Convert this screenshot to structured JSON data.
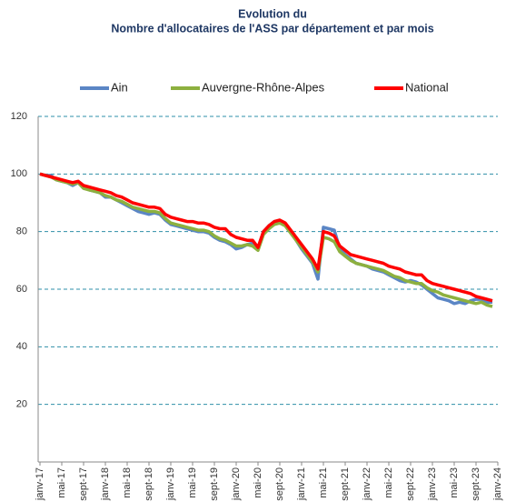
{
  "chart_data": {
    "type": "line",
    "title": "Evolution du",
    "subtitle": "Nombre d'allocataires de l'ASS par département et par mois",
    "categories": [
      "janv-17",
      null,
      null,
      null,
      "mai-17",
      null,
      null,
      null,
      "sept-17",
      null,
      null,
      null,
      "janv-18",
      null,
      null,
      null,
      "mai-18",
      null,
      null,
      null,
      "sept-18",
      null,
      null,
      null,
      "janv-19",
      null,
      null,
      null,
      "mai-19",
      null,
      null,
      null,
      "sept-19",
      null,
      null,
      null,
      "janv-20",
      null,
      null,
      null,
      "mai-20",
      null,
      null,
      null,
      "sept-20",
      null,
      null,
      null,
      "janv-21",
      null,
      null,
      null,
      "mai-21",
      null,
      null,
      null,
      "sept-21",
      null,
      null,
      null,
      "janv-22",
      null,
      null,
      null,
      "mai-22",
      null,
      null,
      null,
      "sept-22",
      null,
      null,
      null,
      "janv-23",
      null,
      null,
      null,
      "mai-23",
      null,
      null,
      null,
      "sept-23",
      null,
      null,
      null,
      "janv-24"
    ],
    "series": [
      {
        "name": "Ain",
        "color": "#5b86c5",
        "values": [
          100,
          99.5,
          99.5,
          98,
          97.5,
          97,
          96,
          97,
          95.5,
          94.5,
          94,
          93.5,
          92,
          92,
          91,
          90,
          89,
          88,
          87,
          86.5,
          86,
          86.5,
          86,
          84,
          82.5,
          82,
          81.5,
          81,
          80.5,
          80,
          80,
          79.5,
          78,
          77,
          76.5,
          75.5,
          74,
          74.5,
          75.5,
          76,
          74,
          80,
          82,
          83.5,
          83.5,
          82.5,
          80,
          77,
          74,
          71.5,
          69,
          63.5,
          81.5,
          81,
          80.5,
          74,
          72,
          70.5,
          69,
          68.5,
          68,
          67,
          66.5,
          66,
          65,
          64,
          63,
          62.5,
          63,
          62.5,
          61.5,
          60,
          58.5,
          57,
          56.5,
          56,
          55,
          55.5,
          55,
          56,
          56.5,
          56.5,
          55.5,
          55.5,
          null
        ]
      },
      {
        "name": "Auvergne-Rhône-Alpes",
        "color": "#8db03f",
        "values": [
          100,
          99.5,
          99,
          98,
          97.5,
          97,
          96.5,
          97,
          95,
          94.5,
          94,
          93.5,
          92.5,
          92,
          91,
          90.5,
          89.5,
          88.5,
          88,
          87.5,
          87,
          87,
          86.5,
          84.5,
          83,
          82.5,
          82,
          81.5,
          81,
          80.5,
          80.5,
          80,
          78.5,
          77.5,
          77,
          76,
          75,
          75,
          75.5,
          75,
          73.5,
          79,
          81,
          82.5,
          83,
          82,
          79.5,
          77,
          74.5,
          72,
          69.5,
          66,
          78,
          77.5,
          76.5,
          73,
          71.5,
          70,
          69,
          68.5,
          68,
          67.5,
          67,
          66.5,
          65.5,
          64.5,
          64,
          63,
          62.5,
          62,
          62,
          60.5,
          59.5,
          59,
          58,
          57.5,
          57,
          56.5,
          56,
          55.5,
          55,
          55.5,
          54.5,
          54,
          null
        ]
      },
      {
        "name": "National",
        "color": "#ff0000",
        "values": [
          100,
          99.5,
          99,
          98.5,
          98,
          97.5,
          97,
          97.5,
          96,
          95.5,
          95,
          94.5,
          94,
          93.5,
          92.5,
          92,
          91,
          90,
          89.5,
          89,
          88.5,
          88.5,
          88,
          86,
          85,
          84.5,
          84,
          83.5,
          83.5,
          83,
          83,
          82.5,
          81.5,
          81,
          81,
          79,
          78,
          77.5,
          77,
          77,
          74.5,
          80,
          82,
          83.5,
          84,
          83,
          80.5,
          78,
          75.5,
          73,
          70.5,
          67,
          80,
          79.5,
          78.5,
          75,
          73.5,
          72,
          71.5,
          71,
          70.5,
          70,
          69.5,
          69,
          68,
          67.5,
          67,
          66,
          65.5,
          65,
          65,
          63,
          62,
          61.5,
          61,
          60.5,
          60,
          59.5,
          59,
          58.5,
          57.5,
          57,
          56.5,
          56,
          null
        ]
      }
    ],
    "ylim": [
      0,
      120
    ],
    "yticks": [
      20,
      40,
      60,
      80,
      100,
      120
    ],
    "grid": true,
    "legend": "top"
  }
}
